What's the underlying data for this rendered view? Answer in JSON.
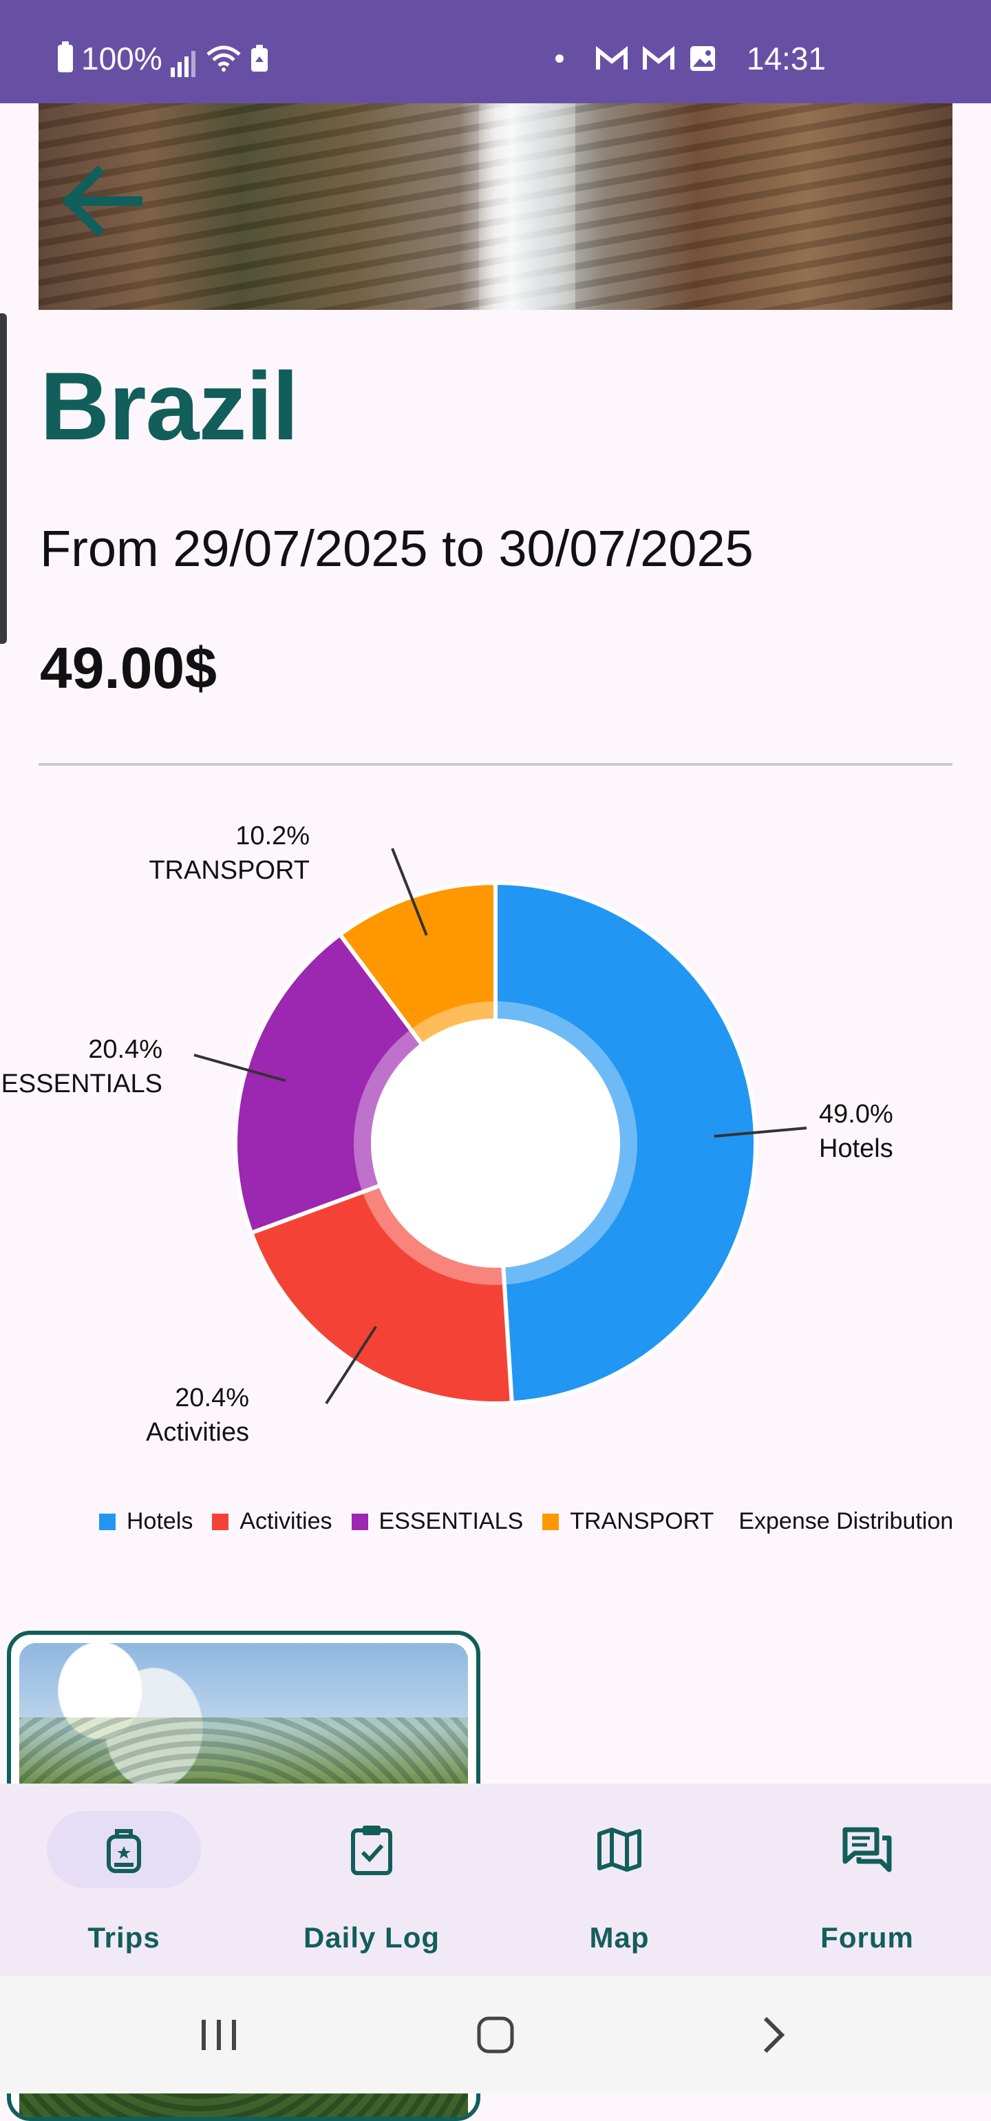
{
  "status_bar": {
    "battery": "100%",
    "time": "14:31",
    "left_icons": [
      "battery-icon",
      "signal-icon",
      "wifi-icon",
      "battery-saver-icon"
    ],
    "right_icons": [
      "dot-icon",
      "gmail-icon",
      "gmail-icon",
      "gallery-icon"
    ]
  },
  "trip": {
    "title": "Brazil",
    "dates": "From 29/07/2025 to 30/07/2025",
    "total": "49.00$"
  },
  "chart_data": {
    "type": "pie",
    "donut": true,
    "title": "Expense Distribution",
    "categories": [
      "Hotels",
      "Activities",
      "ESSENTIALS",
      "TRANSPORT"
    ],
    "values": [
      49.0,
      20.4,
      20.4,
      10.2
    ],
    "percent_labels": [
      "49.0%",
      "20.4%",
      "20.4%",
      "10.2%"
    ],
    "colors": [
      "#2196f3",
      "#f44336",
      "#9c27b0",
      "#ff9800"
    ],
    "legend_position": "bottom"
  },
  "nav": {
    "items": [
      {
        "label": "Trips",
        "icon": "backpack-icon",
        "active": true
      },
      {
        "label": "Daily Log",
        "icon": "clipboard-check-icon",
        "active": false
      },
      {
        "label": "Map",
        "icon": "map-icon",
        "active": false
      },
      {
        "label": "Forum",
        "icon": "forum-icon",
        "active": false
      }
    ]
  },
  "system_nav": [
    "recents-button",
    "home-button",
    "back-button"
  ]
}
